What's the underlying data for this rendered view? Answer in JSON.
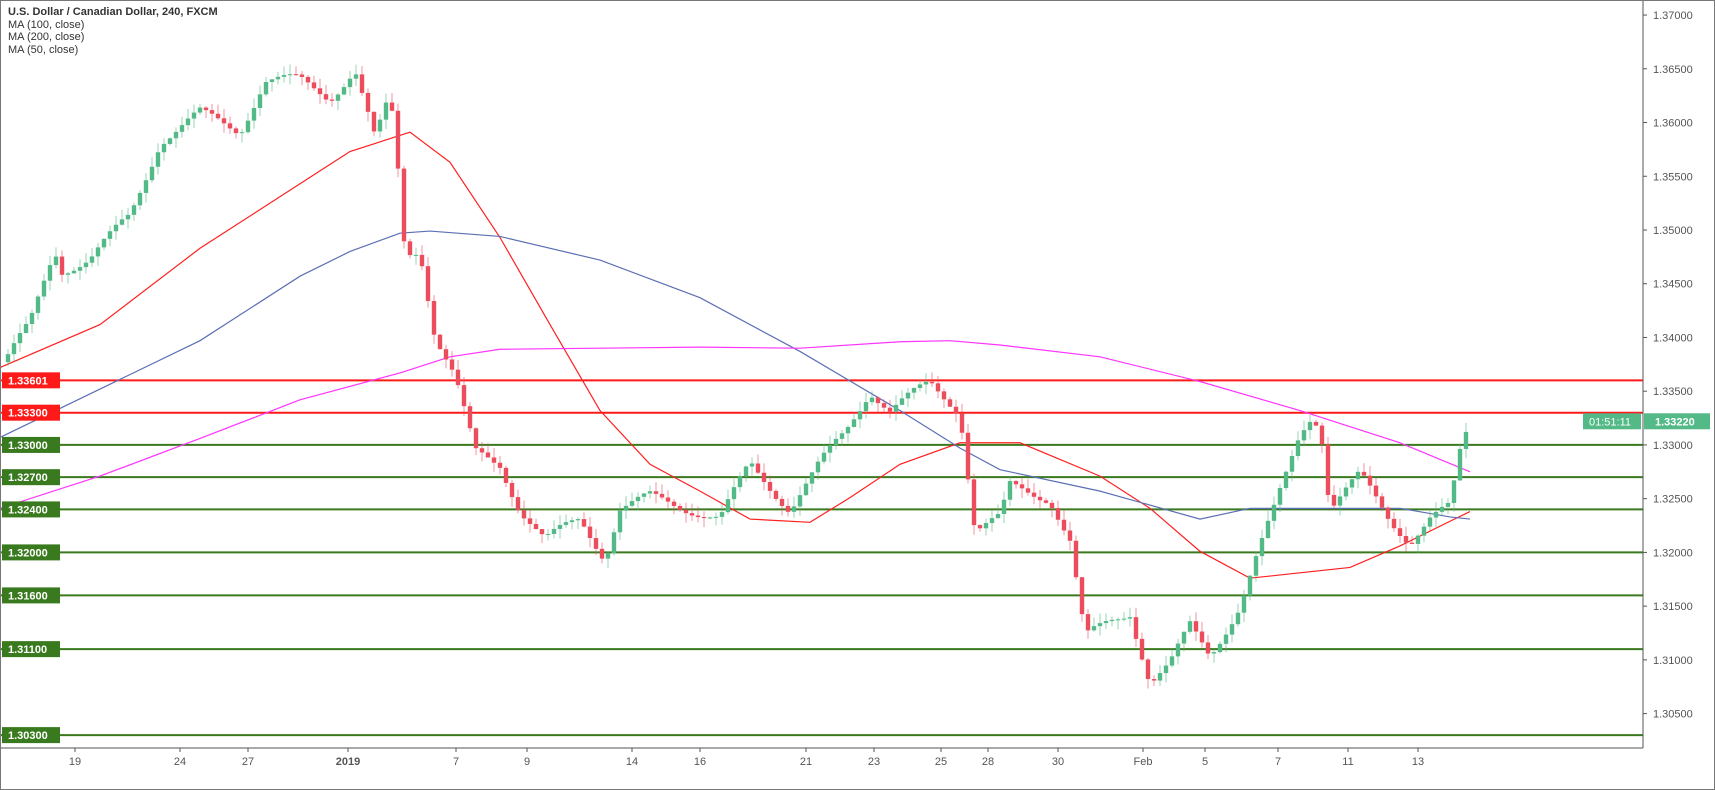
{
  "chart_data": {
    "type": "candlestick",
    "title": "U.S. Dollar / Canadian Dollar, 240, FXCM",
    "legend": [
      "MA (100, close)",
      "MA (200, close)",
      "MA (50, close)"
    ],
    "legend_placement": "top-left",
    "x_unit": "bar-index (tenths)",
    "xlim": [
      0,
      164.3
    ],
    "ylim": [
      1.3018,
      1.3714
    ],
    "y_ticks": [
      "1.30500",
      "1.31000",
      "1.31500",
      "1.32000",
      "1.32500",
      "1.33000",
      "1.33500",
      "1.34000",
      "1.34500",
      "1.35000",
      "1.35500",
      "1.36000",
      "1.36500",
      "1.37000"
    ],
    "x_ticks": [
      {
        "x": 7.5,
        "label": "19"
      },
      {
        "x": 18,
        "label": "24"
      },
      {
        "x": 24.8,
        "label": "27"
      },
      {
        "x": 34.8,
        "label": "2019",
        "bold": true
      },
      {
        "x": 45.6,
        "label": "7"
      },
      {
        "x": 52.7,
        "label": "9"
      },
      {
        "x": 63.2,
        "label": "14"
      },
      {
        "x": 70,
        "label": "16"
      },
      {
        "x": 80.6,
        "label": "21"
      },
      {
        "x": 87.4,
        "label": "23"
      },
      {
        "x": 94.1,
        "label": "25"
      },
      {
        "x": 98.8,
        "label": "28"
      },
      {
        "x": 105.8,
        "label": "30"
      },
      {
        "x": 114.3,
        "label": "Feb"
      },
      {
        "x": 120.5,
        "label": "5"
      },
      {
        "x": 127.8,
        "label": "7"
      },
      {
        "x": 134.8,
        "label": "11"
      },
      {
        "x": 141.8,
        "label": "13"
      }
    ],
    "close_path": [
      [
        0.8,
        1.3382
      ],
      [
        3,
        1.3412
      ],
      [
        5.5,
        1.3483
      ],
      [
        6,
        1.3463
      ],
      [
        9,
        1.3473
      ],
      [
        13,
        1.3513
      ],
      [
        16,
        1.3583
      ],
      [
        20,
        1.3608
      ],
      [
        24,
        1.3593
      ],
      [
        26.5,
        1.3639
      ],
      [
        30,
        1.3639
      ],
      [
        33,
        1.3624
      ],
      [
        35.5,
        1.3649
      ],
      [
        37.5,
        1.3583
      ],
      [
        39,
        1.3624
      ],
      [
        40,
        1.3538
      ],
      [
        40.5,
        1.3478
      ],
      [
        42,
        1.3483
      ],
      [
        43.5,
        1.3402
      ],
      [
        45.5,
        1.3362
      ],
      [
        47.5,
        1.3292
      ],
      [
        50,
        1.3282
      ],
      [
        52,
        1.3241
      ],
      [
        54.5,
        1.3211
      ],
      [
        58,
        1.3231
      ],
      [
        60.5,
        1.3196
      ],
      [
        62,
        1.3241
      ],
      [
        65,
        1.3251
      ],
      [
        69,
        1.3241
      ],
      [
        72,
        1.3231
      ],
      [
        75,
        1.3282
      ],
      [
        79,
        1.3241
      ],
      [
        82,
        1.3282
      ],
      [
        84.5,
        1.3312
      ],
      [
        87,
        1.3352
      ],
      [
        89,
        1.3332
      ],
      [
        93,
        1.3357
      ],
      [
        96,
        1.3332
      ],
      [
        97.5,
        1.3221
      ],
      [
        100,
        1.3231
      ],
      [
        101,
        1.3261
      ],
      [
        105,
        1.3251
      ],
      [
        107,
        1.3211
      ],
      [
        108.5,
        1.312
      ],
      [
        111,
        1.3135
      ],
      [
        113,
        1.3145
      ],
      [
        115,
        1.308
      ],
      [
        117,
        1.3095
      ],
      [
        119,
        1.3131
      ],
      [
        121,
        1.3105
      ],
      [
        124,
        1.3151
      ],
      [
        125.5,
        1.3191
      ],
      [
        127.5,
        1.3241
      ],
      [
        130,
        1.3312
      ],
      [
        131,
        1.3327
      ],
      [
        132,
        1.3322
      ],
      [
        133,
        1.3241
      ],
      [
        136,
        1.3271
      ],
      [
        139,
        1.3231
      ],
      [
        141,
        1.3211
      ],
      [
        143,
        1.3231
      ],
      [
        145,
        1.3241
      ],
      [
        146,
        1.3292
      ],
      [
        147,
        1.3322
      ]
    ],
    "series": [
      {
        "name": "MA (50, close)",
        "color": "#ff1f1f",
        "points": [
          [
            0,
            1.3372
          ],
          [
            10,
            1.3412
          ],
          [
            20,
            1.3483
          ],
          [
            30,
            1.3543
          ],
          [
            35,
            1.3573
          ],
          [
            41,
            1.3591
          ],
          [
            45,
            1.3563
          ],
          [
            50,
            1.3493
          ],
          [
            55,
            1.3412
          ],
          [
            60,
            1.3332
          ],
          [
            65,
            1.3282
          ],
          [
            70,
            1.3257
          ],
          [
            75,
            1.3231
          ],
          [
            81,
            1.3228
          ],
          [
            85,
            1.3251
          ],
          [
            90,
            1.3282
          ],
          [
            96,
            1.3302
          ],
          [
            102,
            1.3302
          ],
          [
            110,
            1.3271
          ],
          [
            115,
            1.3241
          ],
          [
            120,
            1.3201
          ],
          [
            125,
            1.3176
          ],
          [
            130,
            1.3181
          ],
          [
            135,
            1.3186
          ],
          [
            140,
            1.3206
          ],
          [
            145,
            1.3229
          ],
          [
            147,
            1.3238
          ]
        ]
      },
      {
        "name": "MA (100, close)",
        "color": "#5b6fb5",
        "points": [
          [
            0,
            1.3307
          ],
          [
            10,
            1.3352
          ],
          [
            20,
            1.3397
          ],
          [
            30,
            1.3457
          ],
          [
            35,
            1.348
          ],
          [
            40,
            1.3497
          ],
          [
            43,
            1.3499
          ],
          [
            50,
            1.3494
          ],
          [
            60,
            1.3472
          ],
          [
            70,
            1.3437
          ],
          [
            80,
            1.3387
          ],
          [
            90,
            1.3332
          ],
          [
            96,
            1.3297
          ],
          [
            100,
            1.3277
          ],
          [
            110,
            1.3257
          ],
          [
            120,
            1.3231
          ],
          [
            125,
            1.3241
          ],
          [
            130,
            1.3241
          ],
          [
            140,
            1.3241
          ],
          [
            145,
            1.3233
          ],
          [
            147,
            1.3231
          ]
        ]
      },
      {
        "name": "MA (200, close)",
        "color": "#ff33ff",
        "points": [
          [
            0,
            1.3241
          ],
          [
            10,
            1.3271
          ],
          [
            20,
            1.3306
          ],
          [
            30,
            1.3342
          ],
          [
            40,
            1.3367
          ],
          [
            45,
            1.3382
          ],
          [
            50,
            1.3389
          ],
          [
            60,
            1.339
          ],
          [
            70,
            1.3391
          ],
          [
            80,
            1.339
          ],
          [
            90,
            1.3396
          ],
          [
            95,
            1.3397
          ],
          [
            100,
            1.3393
          ],
          [
            110,
            1.3382
          ],
          [
            120,
            1.3359
          ],
          [
            130,
            1.3332
          ],
          [
            140,
            1.3302
          ],
          [
            147,
            1.3275
          ]
        ]
      }
    ],
    "horizontal_levels": [
      {
        "price": 1.33601,
        "label": "1.33601",
        "color": "#ff1a1a"
      },
      {
        "price": 1.333,
        "label": "1.33300",
        "color": "#ff1a1a"
      },
      {
        "price": 1.33,
        "label": "1.33000",
        "color": "#3a7a1e"
      },
      {
        "price": 1.327,
        "label": "1.32700",
        "color": "#3a7a1e"
      },
      {
        "price": 1.324,
        "label": "1.32400",
        "color": "#3a7a1e"
      },
      {
        "price": 1.32,
        "label": "1.32000",
        "color": "#3a7a1e"
      },
      {
        "price": 1.316,
        "label": "1.31600",
        "color": "#3a7a1e"
      },
      {
        "price": 1.311,
        "label": "1.31100",
        "color": "#3a7a1e"
      },
      {
        "price": 1.303,
        "label": "1.30300",
        "color": "#3a7a1e"
      }
    ],
    "last_price": {
      "price": 1.3322,
      "label": "1.33220",
      "countdown": "01:51:11",
      "color": "#53b987"
    },
    "up_color": "#53b987",
    "down_color": "#eb4d5c"
  }
}
